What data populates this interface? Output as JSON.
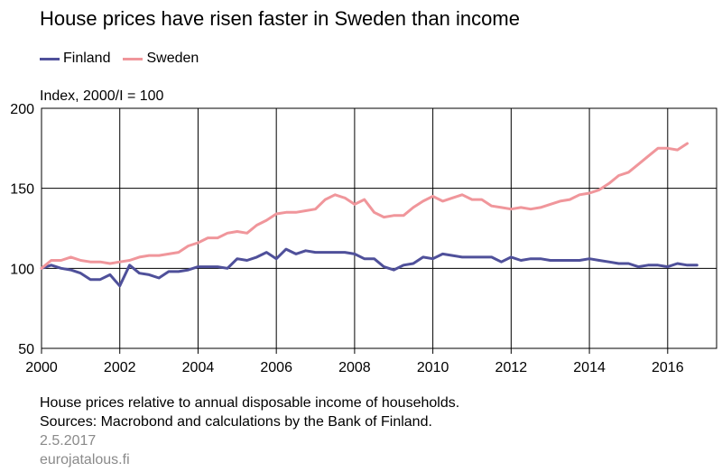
{
  "title": "House prices have risen faster in Sweden than income",
  "unit_label": "Index, 2000/I = 100",
  "notes": {
    "line1": "House prices relative to annual disposable income of households.",
    "line2": "Sources: Macrobond and calculations by the Bank of Finland.",
    "date": "2.5.2017",
    "site": "eurojatalous.fi"
  },
  "colors": {
    "finland": "#4f509a",
    "sweden": "#f0969b",
    "grid": "#000000"
  },
  "chart_data": {
    "type": "line",
    "title": "House prices have risen faster in Sweden than income",
    "ylabel": "Index, 2000/I = 100",
    "xlim": [
      2000,
      2017.25
    ],
    "ylim": [
      50,
      200
    ],
    "yticks": [
      50,
      100,
      150,
      200
    ],
    "xticks": [
      "2000",
      "2002",
      "2004",
      "2006",
      "2008",
      "2010",
      "2012",
      "2014",
      "2016"
    ],
    "legend": "top-left",
    "grid": true,
    "x": [
      2000.0,
      2000.25,
      2000.5,
      2000.75,
      2001.0,
      2001.25,
      2001.5,
      2001.75,
      2002.0,
      2002.25,
      2002.5,
      2002.75,
      2003.0,
      2003.25,
      2003.5,
      2003.75,
      2004.0,
      2004.25,
      2004.5,
      2004.75,
      2005.0,
      2005.25,
      2005.5,
      2005.75,
      2006.0,
      2006.25,
      2006.5,
      2006.75,
      2007.0,
      2007.25,
      2007.5,
      2007.75,
      2008.0,
      2008.25,
      2008.5,
      2008.75,
      2009.0,
      2009.25,
      2009.5,
      2009.75,
      2010.0,
      2010.25,
      2010.5,
      2010.75,
      2011.0,
      2011.25,
      2011.5,
      2011.75,
      2012.0,
      2012.25,
      2012.5,
      2012.75,
      2013.0,
      2013.25,
      2013.5,
      2013.75,
      2014.0,
      2014.25,
      2014.5,
      2014.75,
      2015.0,
      2015.25,
      2015.5,
      2015.75,
      2016.0,
      2016.25,
      2016.5,
      2016.75
    ],
    "series": [
      {
        "name": "Finland",
        "values": [
          100,
          102,
          100,
          99,
          97,
          93,
          93,
          96,
          89,
          102,
          97,
          96,
          94,
          98,
          98,
          99,
          101,
          101,
          101,
          100,
          106,
          105,
          107,
          110,
          106,
          112,
          109,
          111,
          110,
          110,
          110,
          110,
          109,
          106,
          106,
          101,
          99,
          102,
          103,
          107,
          106,
          109,
          108,
          107,
          107,
          107,
          107,
          104,
          107,
          105,
          106,
          106,
          105,
          105,
          105,
          105,
          106,
          105,
          104,
          103,
          103,
          101,
          102,
          102,
          101,
          103,
          102,
          102
        ]
      },
      {
        "name": "Sweden",
        "values": [
          100,
          105,
          105,
          107,
          105,
          104,
          104,
          103,
          104,
          105,
          107,
          108,
          108,
          109,
          110,
          114,
          116,
          119,
          119,
          122,
          123,
          122,
          127,
          130,
          134,
          135,
          135,
          136,
          137,
          143,
          146,
          144,
          140,
          143,
          135,
          132,
          133,
          133,
          138,
          142,
          145,
          142,
          144,
          146,
          143,
          143,
          139,
          138,
          137,
          138,
          137,
          138,
          140,
          142,
          143,
          146,
          147,
          149,
          153,
          158,
          160,
          165,
          170,
          175,
          175,
          174,
          178,
          null
        ]
      }
    ]
  }
}
